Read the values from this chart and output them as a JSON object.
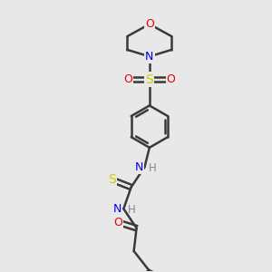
{
  "background_color": "#e8e8e8",
  "atom_colors": {
    "C": "#3a3a3a",
    "N": "#0000ee",
    "O": "#ee0000",
    "S": "#cccc00",
    "H": "#888888"
  },
  "bond_color": "#3a3a3a",
  "figsize": [
    3.0,
    3.0
  ],
  "dpi": 100
}
